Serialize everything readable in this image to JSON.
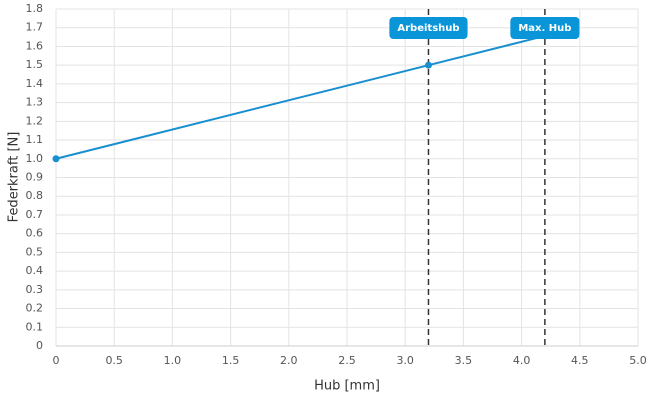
{
  "chart_data": {
    "type": "line",
    "x_label": "Hub [mm]",
    "y_label": "Federkraft [N]",
    "x": [
      0,
      3.2,
      4.2
    ],
    "series": [
      {
        "color": "#1a8fd0",
        "values": [
          1,
          1.5,
          1.65625
        ]
      }
    ],
    "xlim": [
      0,
      5
    ],
    "ylim": [
      0,
      1.8
    ],
    "xticks": [
      0,
      0.5,
      {
        "value": 1,
        "label": "1.0"
      },
      1.5,
      {
        "value": 2,
        "label": "2.0"
      },
      2.5,
      {
        "value": 3,
        "label": "3.0"
      },
      3.5,
      {
        "value": 4,
        "label": "4.0"
      },
      4.5,
      {
        "value": 5,
        "label": "5.0"
      }
    ],
    "yticks": [
      0,
      0.1,
      0.2,
      0.3,
      0.4,
      0.5,
      0.6,
      0.7,
      0.8,
      0.9,
      {
        "value": 1,
        "label": "1.0"
      },
      1.1,
      1.2,
      1.3,
      1.4,
      1.5,
      1.6,
      1.7,
      1.8
    ],
    "grid": true,
    "annotations": [
      {
        "x": 3.2,
        "text": "Arbeitshub",
        "color": "#0a95d8"
      },
      {
        "x": 4.2,
        "text": "Max. Hub",
        "color": "#0a95d8"
      }
    ]
  }
}
